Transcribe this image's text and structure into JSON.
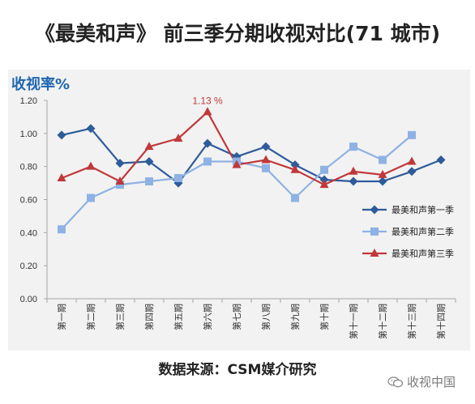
{
  "title": "《最美和声》 前三季分期收视对比(71 城市)",
  "source": "数据来源：CSM媒介研究",
  "watermark": "收视中国",
  "colors": {
    "season1": "#2e5b9a",
    "season2": "#8eb2e3",
    "season3": "#c0383b",
    "ylabel": "#1f66b0",
    "panel": "#f2f2f2"
  },
  "chart_data": {
    "type": "line",
    "ylabel": "收视率%",
    "xlabel": "",
    "ylim": [
      0,
      1.2
    ],
    "yticks": [
      "0.00",
      "0.20",
      "0.40",
      "0.60",
      "0.80",
      "1.00",
      "1.20"
    ],
    "categories": [
      "第一期",
      "第二期",
      "第三期",
      "第四期",
      "第五期",
      "第六期",
      "第七期",
      "第八期",
      "第九期",
      "第十期",
      "第十一期",
      "第十二期",
      "第十三期",
      "第十四期"
    ],
    "series": [
      {
        "name": "最美和声第一季",
        "marker": "diamond",
        "values": [
          0.99,
          1.03,
          0.82,
          0.83,
          0.7,
          0.94,
          0.86,
          0.92,
          0.81,
          0.72,
          0.71,
          0.71,
          0.77,
          0.84
        ]
      },
      {
        "name": "最美和声第二季",
        "marker": "square",
        "values": [
          0.42,
          0.61,
          0.69,
          0.71,
          0.73,
          0.83,
          0.83,
          0.79,
          0.61,
          0.78,
          0.92,
          0.84,
          0.99,
          null
        ]
      },
      {
        "name": "最美和声第三季",
        "marker": "triangle",
        "values": [
          0.73,
          0.8,
          0.71,
          0.92,
          0.97,
          1.13,
          0.81,
          0.84,
          0.78,
          0.69,
          0.77,
          0.75,
          0.83,
          null
        ]
      }
    ],
    "annotation": {
      "text": "1.13 %",
      "series": 2,
      "index": 5
    },
    "legend": "right",
    "grid": false
  }
}
